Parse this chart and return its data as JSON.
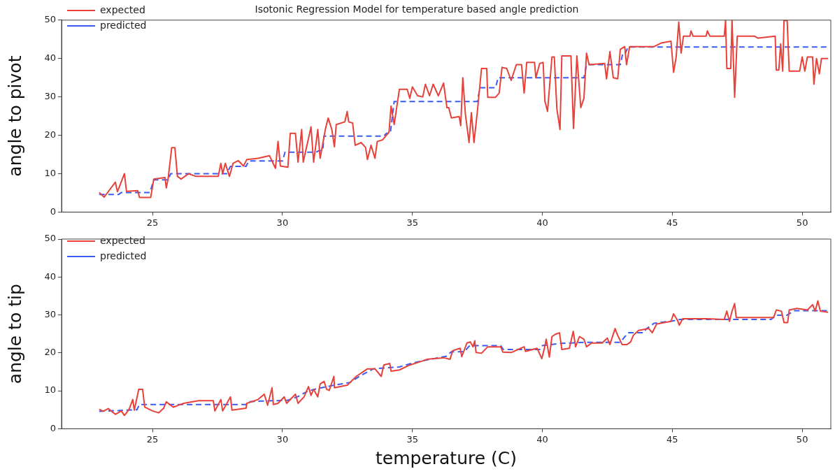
{
  "chart_data": [
    {
      "type": "line",
      "title": "Isotonic Regression Model for temperature based angle prediction",
      "ylabel": "angle to pivot",
      "xlim": [
        21.5,
        51.1
      ],
      "ylim": [
        0,
        50
      ],
      "xticks": [
        25,
        30,
        35,
        40,
        45,
        50
      ],
      "yticks": [
        0,
        10,
        20,
        30,
        40,
        50
      ],
      "legend": "top left",
      "marker": "none",
      "series": [
        {
          "name": "expected",
          "color": "#e8413a",
          "line_style": "solid",
          "x": [
            22.95,
            23.14,
            23.57,
            23.65,
            23.92,
            24.0,
            24.43,
            24.5,
            24.93,
            25.05,
            25.48,
            25.53,
            25.6,
            25.74,
            25.86,
            25.96,
            26.1,
            26.39,
            26.67,
            27.53,
            27.63,
            27.7,
            27.8,
            27.96,
            28.1,
            28.3,
            28.5,
            28.63,
            29.06,
            29.5,
            29.73,
            29.83,
            29.92,
            30.21,
            30.3,
            30.5,
            30.6,
            30.74,
            30.8,
            31.1,
            31.2,
            31.36,
            31.45,
            31.65,
            31.76,
            31.9,
            32.0,
            32.07,
            32.4,
            32.49,
            32.55,
            32.7,
            32.8,
            33.03,
            33.2,
            33.27,
            33.41,
            33.56,
            33.65,
            33.85,
            34.1,
            34.18,
            34.3,
            34.5,
            34.8,
            34.9,
            35.0,
            35.2,
            35.4,
            35.5,
            35.66,
            35.8,
            36.0,
            36.2,
            36.33,
            36.4,
            36.5,
            36.8,
            36.86,
            36.94,
            37.04,
            37.18,
            37.27,
            37.37,
            37.5,
            37.66,
            37.86,
            37.9,
            38.2,
            38.34,
            38.45,
            38.63,
            38.8,
            39.0,
            39.2,
            39.3,
            39.4,
            39.7,
            39.75,
            39.9,
            40.03,
            40.1,
            40.2,
            40.37,
            40.46,
            40.56,
            40.68,
            40.75,
            41.1,
            41.2,
            41.33,
            41.48,
            41.6,
            41.7,
            41.8,
            42.4,
            42.47,
            42.6,
            42.73,
            42.9,
            43.0,
            43.17,
            43.24,
            43.36,
            44.3,
            44.6,
            44.95,
            45.05,
            45.15,
            45.25,
            45.34,
            45.43,
            45.68,
            45.72,
            45.8,
            46.3,
            46.35,
            46.45,
            47.0,
            47.05,
            47.1,
            47.25,
            47.3,
            47.4,
            47.5,
            48.17,
            48.3,
            48.96,
            49.0,
            49.1,
            49.17,
            49.25,
            49.3,
            49.42,
            49.5,
            49.9,
            50.0,
            50.1,
            50.2,
            50.4,
            50.45,
            50.55,
            50.66,
            50.74,
            51.0
          ],
          "values": [
            5.1,
            3.9,
            7.8,
            5.3,
            10,
            5.4,
            5.6,
            3.8,
            3.8,
            8.6,
            9,
            6.3,
            8.6,
            16.8,
            16.8,
            9.3,
            8.6,
            10,
            9.3,
            9.3,
            12.7,
            10,
            12.7,
            9.3,
            12.7,
            13.4,
            12,
            13.7,
            14,
            14.7,
            11.4,
            18.4,
            12,
            11.7,
            20.5,
            20.5,
            13,
            21.5,
            13,
            22.2,
            13,
            21.5,
            14,
            21.5,
            24.5,
            21.5,
            17,
            22.8,
            23.5,
            26.2,
            23.5,
            23.2,
            17.4,
            18.1,
            16.8,
            13.7,
            17.4,
            14,
            18.4,
            18.8,
            20.8,
            27.6,
            22.8,
            32,
            32,
            29.6,
            32.6,
            30.3,
            30,
            33.3,
            30.3,
            33.3,
            30.3,
            33.6,
            27.2,
            27.2,
            24.5,
            24.9,
            22.5,
            35,
            25.5,
            18.1,
            25.9,
            18.1,
            26.2,
            37.4,
            37.4,
            29.9,
            29.9,
            31,
            37.7,
            37.4,
            34.3,
            38.4,
            38.4,
            31,
            39,
            39,
            35,
            38.7,
            39,
            28.9,
            26.2,
            40.4,
            40.4,
            26.9,
            21.5,
            40.7,
            40.7,
            21.8,
            40.7,
            27.2,
            29.6,
            41.4,
            38.4,
            38.7,
            34.7,
            41.8,
            35,
            34.7,
            42.4,
            43.1,
            38.4,
            43.1,
            43.1,
            44.1,
            44.5,
            36.4,
            40.4,
            49.5,
            41.4,
            45.8,
            45.8,
            47.2,
            45.8,
            45.8,
            47.2,
            45.8,
            45.8,
            49.9,
            37.4,
            37.4,
            49.9,
            29.9,
            45.8,
            45.8,
            45.3,
            45.8,
            37,
            37,
            43.8,
            36.7,
            49.9,
            49.9,
            36.7,
            36.7,
            40.4,
            36.7,
            40.4,
            40.4,
            33.3,
            40,
            36,
            40,
            40
          ]
        },
        {
          "name": "predicted",
          "color": "#3a5cf5",
          "line_style": "dashed",
          "x": [
            22.95,
            23.7,
            23.8,
            24.9,
            25.05,
            25.6,
            25.7,
            27.85,
            28.0,
            28.6,
            28.7,
            30.0,
            30.1,
            31.3,
            31.4,
            31.55,
            31.6,
            33.9,
            34.0,
            34.15,
            34.3,
            37.5,
            37.6,
            38.2,
            38.3,
            41.6,
            41.7,
            43.0,
            43.1,
            43.2,
            43.3,
            51.0
          ],
          "values": [
            4.6,
            4.6,
            5.1,
            5.1,
            8.4,
            8.4,
            10,
            10,
            11.9,
            11.9,
            13.3,
            13.3,
            15.6,
            15.6,
            16,
            16,
            19.8,
            19.8,
            20.5,
            20.5,
            28.8,
            28.8,
            32.4,
            32.4,
            35,
            35,
            38.4,
            38.4,
            41.5,
            41.5,
            43,
            43
          ]
        }
      ]
    },
    {
      "type": "line",
      "ylabel": "angle to tip",
      "xlabel": "temperature (C)",
      "xlim": [
        21.5,
        51.1
      ],
      "ylim": [
        0,
        50
      ],
      "xticks": [
        25,
        30,
        35,
        40,
        45,
        50
      ],
      "yticks": [
        0,
        10,
        20,
        30,
        40,
        50
      ],
      "legend": "top left",
      "marker": "none",
      "series": [
        {
          "name": "expected",
          "color": "#e8413a",
          "line_style": "solid",
          "x": [
            22.95,
            23.1,
            23.3,
            23.57,
            23.8,
            23.92,
            24.1,
            24.24,
            24.3,
            24.47,
            24.62,
            24.7,
            25.0,
            25.24,
            25.43,
            25.53,
            25.8,
            26.2,
            26.77,
            27.34,
            27.4,
            27.63,
            27.7,
            28.0,
            28.06,
            28.6,
            28.63,
            29.06,
            29.3,
            29.43,
            29.6,
            29.65,
            29.83,
            30.07,
            30.16,
            30.5,
            30.6,
            30.83,
            31.0,
            31.1,
            31.2,
            31.36,
            31.45,
            31.6,
            31.7,
            31.8,
            31.98,
            32.0,
            32.5,
            32.84,
            33.27,
            33.56,
            33.8,
            33.9,
            34.13,
            34.18,
            34.5,
            34.9,
            35.23,
            35.56,
            35.85,
            36.2,
            36.45,
            36.55,
            36.84,
            36.9,
            37.1,
            37.23,
            37.33,
            37.4,
            37.45,
            37.66,
            37.9,
            38.4,
            38.48,
            38.8,
            39.3,
            39.35,
            39.8,
            39.98,
            40.08,
            40.15,
            40.27,
            40.37,
            40.5,
            40.66,
            40.75,
            41.04,
            41.19,
            41.28,
            41.43,
            41.6,
            41.7,
            41.9,
            42.3,
            42.5,
            42.6,
            42.8,
            42.9,
            43.07,
            43.26,
            43.4,
            43.5,
            43.7,
            44.1,
            44.23,
            44.4,
            44.95,
            45.05,
            45.2,
            45.27,
            45.4,
            46.35,
            47.0,
            47.1,
            47.2,
            47.3,
            47.4,
            47.46,
            48.9,
            49.0,
            49.2,
            49.3,
            49.44,
            49.5,
            49.8,
            50.2,
            50.4,
            50.5,
            50.6,
            50.7,
            51.0
          ],
          "values": [
            5.1,
            4.6,
            5.3,
            3.8,
            4.7,
            3.5,
            5.1,
            7.7,
            4.9,
            10.4,
            10.4,
            5.7,
            4.7,
            4.2,
            5.4,
            7.1,
            5.7,
            6.7,
            7.4,
            7.4,
            4.7,
            7.7,
            4.7,
            8.4,
            4.9,
            5.4,
            6.7,
            7.7,
            9.1,
            6.2,
            10.8,
            6.4,
            6.7,
            8.4,
            6.7,
            9.1,
            6.7,
            8.4,
            11.1,
            8.8,
            10.4,
            8.4,
            11.8,
            12.5,
            10.4,
            10.1,
            13.8,
            10.8,
            11.5,
            13.8,
            15.8,
            15.8,
            13.8,
            16.8,
            17.2,
            15.2,
            15.5,
            16.8,
            17.5,
            18.3,
            18.5,
            18.7,
            18.3,
            20.6,
            21.2,
            19,
            22.6,
            22.9,
            21.6,
            23.2,
            20.1,
            19.9,
            21.6,
            21.6,
            20.2,
            20.1,
            21.6,
            20.4,
            21.2,
            18.5,
            21.2,
            23.6,
            18.9,
            24.3,
            24.9,
            25.3,
            20.9,
            21.2,
            25.7,
            21.6,
            24.3,
            23.6,
            21.6,
            22.6,
            22.6,
            23.9,
            22.2,
            26.4,
            24.6,
            22.2,
            22.2,
            22.9,
            24.6,
            25.9,
            26.4,
            25.3,
            27.6,
            28.3,
            30.3,
            28.6,
            27.3,
            29,
            29,
            28.8,
            31,
            28.3,
            31,
            33,
            29.3,
            29.3,
            31.3,
            31,
            28,
            28,
            31.3,
            31.7,
            31.3,
            32.7,
            31,
            33.7,
            31,
            30.7
          ]
        },
        {
          "name": "predicted",
          "color": "#3a5cf5",
          "line_style": "dashed",
          "x": [
            22.95,
            24.4,
            24.5,
            28.6,
            28.7,
            29.2,
            30.2,
            30.6,
            31.0,
            31.5,
            32.0,
            32.6,
            33.0,
            33.5,
            34.5,
            35.0,
            35.6,
            36.3,
            36.5,
            37.0,
            37.2,
            38.4,
            38.5,
            39.9,
            40.0,
            40.7,
            41.7,
            43.0,
            43.3,
            43.9,
            44.0,
            44.3,
            45.0,
            45.3,
            48.8,
            49.0,
            49.4,
            49.7,
            51.0
          ],
          "values": [
            4.6,
            5,
            6.4,
            6.4,
            7.1,
            7.3,
            7.5,
            8.5,
            10,
            10.8,
            11.5,
            12.2,
            14,
            15.8,
            16.3,
            17.3,
            18.2,
            19.1,
            20.3,
            20.3,
            21.9,
            21.9,
            20.9,
            20.9,
            21.9,
            22.5,
            22.8,
            22.8,
            25.3,
            25.3,
            26.3,
            27.8,
            28.4,
            28.8,
            28.8,
            29.9,
            29.9,
            31.1,
            31.1
          ]
        }
      ]
    }
  ]
}
